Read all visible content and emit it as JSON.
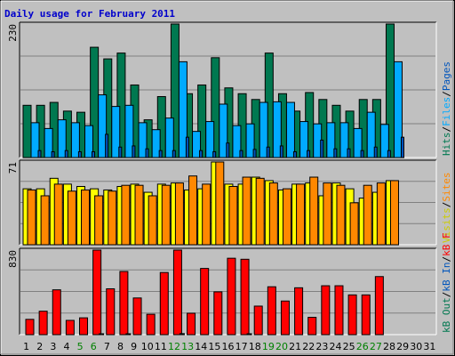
{
  "chart_data": {
    "type": "bar",
    "title": "Daily usage for February 2011",
    "days": [
      "1",
      "2",
      "3",
      "4",
      "5",
      "6",
      "7",
      "8",
      "9",
      "10",
      "11",
      "12",
      "13",
      "14",
      "15",
      "16",
      "17",
      "18",
      "19",
      "20",
      "21",
      "22",
      "23",
      "24",
      "25",
      "26",
      "27",
      "28",
      "29",
      "30",
      "31"
    ],
    "weekend_days": [
      "5",
      "6",
      "12",
      "13",
      "19",
      "20",
      "26",
      "27"
    ],
    "colors": {
      "hits": "#007850",
      "files": "#00aaff",
      "pages": "#0054bc",
      "visits": "#ffff00",
      "sites": "#ff8800",
      "kbf": "#ff0000",
      "kbin": "#0055bb",
      "kbout": "#007850",
      "weekday_tick": "#000000",
      "weekend_tick": "#008000"
    },
    "panels": [
      {
        "id": "hits",
        "max_label": "230",
        "max": 230,
        "right_labels": [
          {
            "text": "Hits",
            "color": "#007850"
          },
          {
            "text": "/",
            "color": "#000000"
          },
          {
            "text": "Files",
            "color": "#00aaff"
          },
          {
            "text": "/",
            "color": "#000000"
          },
          {
            "text": "Pages",
            "color": "#0054bc"
          }
        ],
        "series": [
          {
            "name": "Hits",
            "color": "#007850",
            "values": [
              90,
              90,
              95,
              80,
              78,
              190,
              170,
              180,
              125,
              65,
              105,
              230,
              110,
              125,
              172,
              120,
              110,
              100,
              180,
              110,
              80,
              112,
              100,
              90,
              80,
              100,
              100,
              230,
              0,
              0,
              0
            ]
          },
          {
            "name": "Files",
            "color": "#00aaff",
            "values": [
              60,
              50,
              65,
              60,
              55,
              108,
              88,
              90,
              60,
              48,
              68,
              165,
              45,
              62,
              92,
              55,
              58,
              95,
              96,
              95,
              62,
              58,
              60,
              60,
              50,
              78,
              57,
              165,
              0,
              0,
              0
            ]
          },
          {
            "name": "Pages",
            "color": "#0054bc",
            "values": [
              12,
              10,
              12,
              10,
              10,
              40,
              18,
              20,
              15,
              12,
              12,
              35,
              12,
              10,
              25,
              12,
              14,
              18,
              20,
              10,
              12,
              30,
              15,
              15,
              12,
              18,
              12,
              35,
              0,
              0,
              0
            ]
          }
        ]
      },
      {
        "id": "visits",
        "max_label": "71",
        "max": 71,
        "right_labels": [
          {
            "text": "Visits",
            "color": "#cccc00"
          },
          {
            "text": "/",
            "color": "#000000"
          },
          {
            "text": "Sites",
            "color": "#ff8800"
          }
        ],
        "series": [
          {
            "name": "Visits",
            "color": "#ffff00",
            "values": [
              48,
              48,
              57,
              52,
              50,
              48,
              47,
              50,
              52,
              45,
              52,
              53,
              47,
              48,
              71,
              52,
              52,
              58,
              55,
              47,
              52,
              53,
              42,
              53,
              48,
              40,
              45,
              55,
              0,
              0,
              0
            ]
          },
          {
            "name": "Sites",
            "color": "#ff8800",
            "values": [
              47,
              42,
              52,
              46,
              47,
              42,
              46,
              51,
              51,
              42,
              51,
              53,
              59,
              52,
              71,
              50,
              58,
              57,
              53,
              48,
              52,
              58,
              53,
              51,
              36,
              51,
              53,
              55,
              0,
              0,
              0
            ]
          }
        ]
      },
      {
        "id": "kbytes",
        "max_label": "830",
        "max": 830,
        "right_labels": [
          {
            "text": "kB Out",
            "color": "#007850"
          },
          {
            "text": "/",
            "color": "#000000"
          },
          {
            "text": "kB In",
            "color": "#0055bb"
          },
          {
            "text": "/",
            "color": "#000000"
          },
          {
            "text": "kB F",
            "color": "#ff0000"
          }
        ],
        "series": [
          {
            "name": "kB F",
            "color": "#ff0000",
            "values": [
              150,
              230,
              440,
              140,
              165,
              830,
              450,
              620,
              360,
              200,
              610,
              830,
              210,
              650,
              420,
              750,
              740,
              280,
              470,
              330,
              460,
              170,
              480,
              480,
              390,
              390,
              570,
              0,
              0,
              0,
              0
            ]
          },
          {
            "name": "kB In",
            "color": "#0055bb",
            "values": [
              0,
              0,
              0,
              0,
              0,
              5,
              0,
              5,
              0,
              0,
              0,
              10,
              0,
              0,
              0,
              0,
              5,
              0,
              0,
              0,
              0,
              0,
              0,
              0,
              0,
              0,
              0,
              0,
              0,
              0,
              0
            ]
          },
          {
            "name": "kB Out",
            "color": "#007850",
            "values": [
              0,
              0,
              0,
              0,
              0,
              5,
              0,
              5,
              0,
              0,
              0,
              10,
              0,
              0,
              0,
              0,
              5,
              0,
              0,
              0,
              0,
              0,
              0,
              0,
              0,
              0,
              0,
              0,
              0,
              0,
              0
            ]
          }
        ]
      }
    ]
  }
}
